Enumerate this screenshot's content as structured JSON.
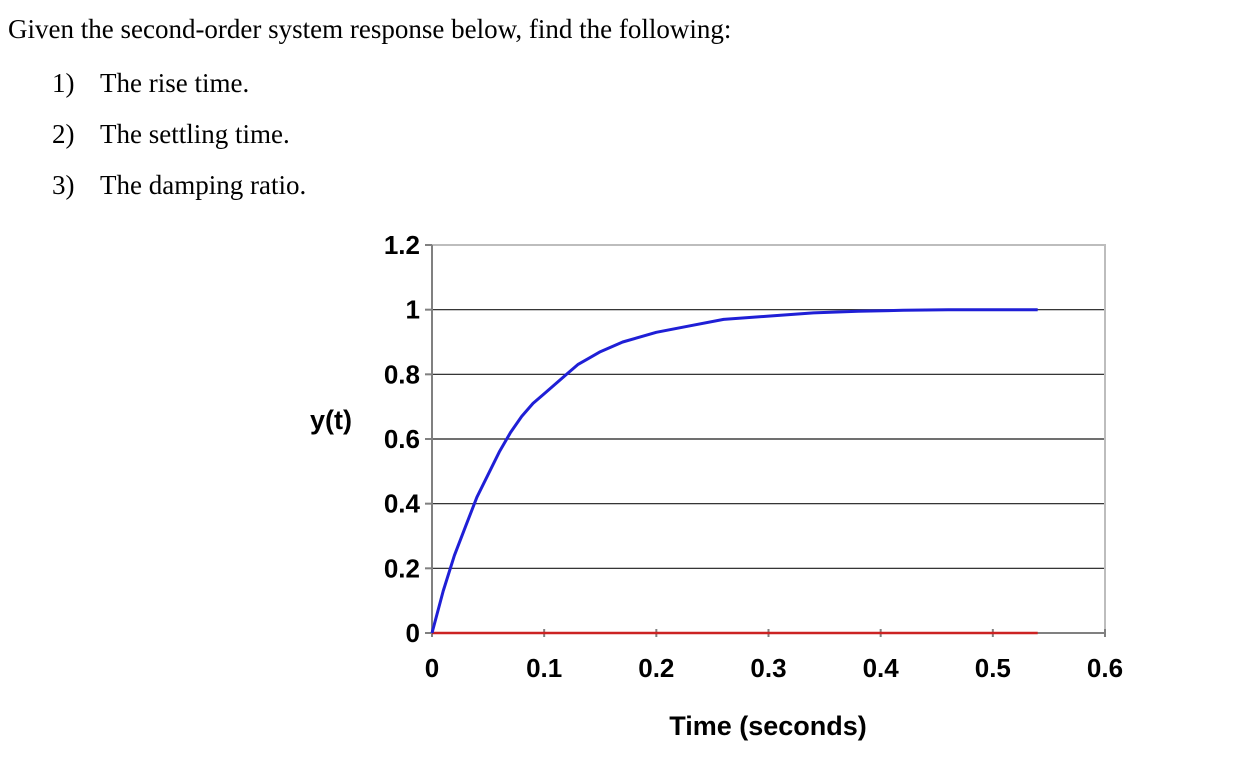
{
  "question": {
    "intro": "Given the second-order system response below, find the following:",
    "items": [
      {
        "num": "1)",
        "text": "The rise time."
      },
      {
        "num": "2)",
        "text": "The settling time."
      },
      {
        "num": "3)",
        "text": "The damping ratio."
      }
    ]
  },
  "chart_data": {
    "type": "line",
    "title": "",
    "xlabel": "Time (seconds)",
    "ylabel": "y(t)",
    "xlim": [
      0,
      0.6
    ],
    "ylim": [
      0,
      1.2
    ],
    "xticks": [
      "0",
      "0.1",
      "0.2",
      "0.3",
      "0.4",
      "0.5",
      "0.6"
    ],
    "yticks": [
      "0",
      "0.2",
      "0.4",
      "0.6",
      "0.8",
      "1",
      "1.2"
    ],
    "grid": "horizontal",
    "legend": "none",
    "series": [
      {
        "color": "#1f1fd6",
        "x": [
          0,
          0.01,
          0.02,
          0.03,
          0.04,
          0.05,
          0.06,
          0.07,
          0.08,
          0.09,
          0.1,
          0.11,
          0.12,
          0.13,
          0.14,
          0.15,
          0.17,
          0.2,
          0.23,
          0.26,
          0.3,
          0.34,
          0.38,
          0.42,
          0.46,
          0.5,
          0.54
        ],
        "y": [
          0,
          0.13,
          0.24,
          0.33,
          0.42,
          0.49,
          0.56,
          0.62,
          0.67,
          0.71,
          0.74,
          0.77,
          0.8,
          0.83,
          0.85,
          0.87,
          0.9,
          0.93,
          0.95,
          0.97,
          0.98,
          0.99,
          0.995,
          0.998,
          1.0,
          1.0,
          1.0
        ]
      },
      {
        "color": "#cc2222",
        "x": [
          0,
          0.54
        ],
        "y": [
          0,
          0
        ]
      }
    ]
  }
}
